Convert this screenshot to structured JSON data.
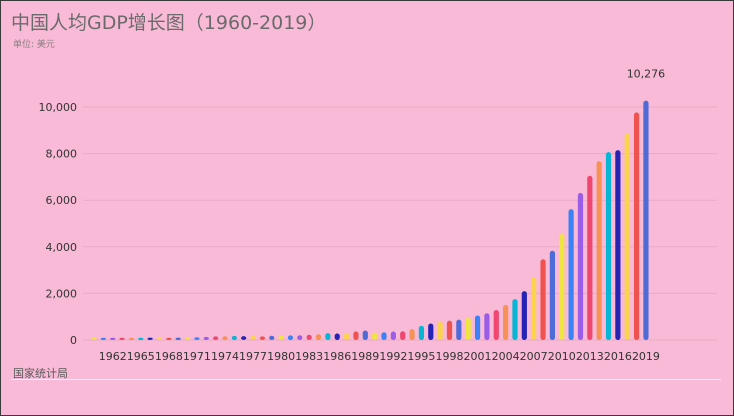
{
  "title": "中国人均GDP增长图（1960-2019）",
  "subtitle": "单位: 美元",
  "source": "国家统计局",
  "chart_data": {
    "type": "bar",
    "title": "中国人均GDP增长图（1960-2019）",
    "unit": "美元",
    "ylim": [
      0,
      10000
    ],
    "yticks": [
      0,
      2000,
      4000,
      6000,
      8000,
      10000
    ],
    "ytick_labels": [
      "0",
      "2,000",
      "4,000",
      "6,000",
      "8,000",
      "10,000"
    ],
    "grid": true,
    "categories": [
      1960,
      1961,
      1962,
      1963,
      1964,
      1965,
      1966,
      1967,
      1968,
      1969,
      1970,
      1971,
      1972,
      1973,
      1974,
      1975,
      1976,
      1977,
      1978,
      1979,
      1980,
      1981,
      1982,
      1983,
      1984,
      1985,
      1986,
      1987,
      1988,
      1989,
      1990,
      1991,
      1992,
      1993,
      1994,
      1995,
      1996,
      1997,
      1998,
      1999,
      2000,
      2001,
      2002,
      2003,
      2004,
      2005,
      2006,
      2007,
      2008,
      2009,
      2010,
      2011,
      2012,
      2013,
      2014,
      2015,
      2016,
      2017,
      2018,
      2019
    ],
    "values": [
      90,
      76,
      70,
      74,
      85,
      98,
      104,
      96,
      91,
      100,
      113,
      119,
      132,
      157,
      160,
      178,
      165,
      185,
      156,
      183,
      195,
      197,
      203,
      225,
      250,
      294,
      282,
      301,
      370,
      408,
      318,
      333,
      366,
      377,
      473,
      610,
      709,
      782,
      829,
      873,
      959,
      1053,
      1149,
      1289,
      1509,
      1753,
      2099,
      2694,
      3468,
      3832,
      4550,
      5618,
      6316,
      7050,
      7678,
      8066,
      8148,
      8879,
      9771,
      10276
    ],
    "value_labels": [
      {
        "category": 2019,
        "label": "10,276"
      }
    ],
    "xtick_labels": [
      "1962",
      "1965",
      "1968",
      "1971",
      "1974",
      "1977",
      "1980",
      "1983",
      "1986",
      "1989",
      "1992",
      "1995",
      "1998",
      "2001",
      "2004",
      "2007",
      "2010",
      "2013",
      "2016",
      "2019"
    ],
    "colors": [
      "#f0e442",
      "#3b82f6",
      "#9b5de5",
      "#ef476f",
      "#f79256",
      "#06b6d4",
      "#2623b5",
      "#fcd34d",
      "#ef5350",
      "#4f6bd6"
    ]
  }
}
